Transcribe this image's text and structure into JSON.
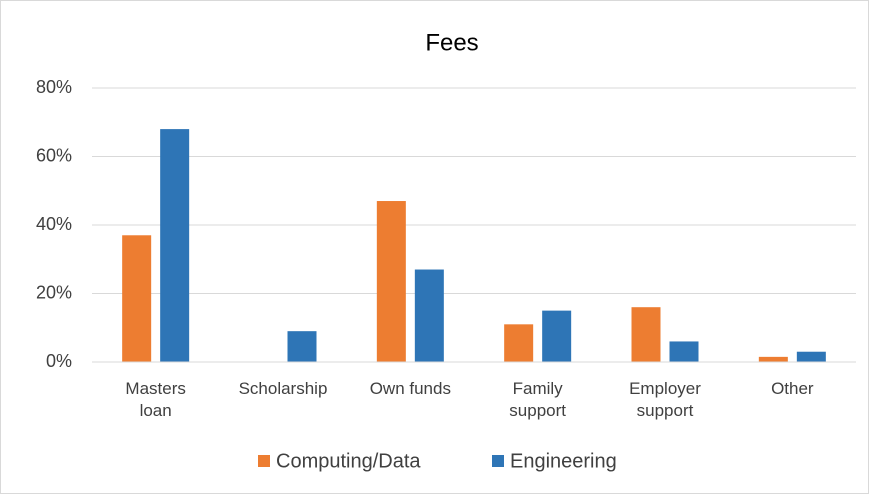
{
  "chart_data": {
    "type": "bar",
    "title": "Fees",
    "categories": [
      "Masters loan",
      "Scholarship",
      "Own funds",
      "Family support",
      "Employer support",
      "Other"
    ],
    "series": [
      {
        "name": "Computing/Data",
        "color": "#ed7d31",
        "values": [
          37,
          0,
          47,
          11,
          16,
          1.5
        ]
      },
      {
        "name": "Engineering",
        "color": "#2e75b6",
        "values": [
          68,
          9,
          27,
          15,
          6,
          3
        ]
      }
    ],
    "ylim": [
      0,
      80
    ],
    "yticks": [
      {
        "value": 0,
        "label": "0%"
      },
      {
        "value": 20,
        "label": "20%"
      },
      {
        "value": 40,
        "label": "40%"
      },
      {
        "value": 60,
        "label": "60%"
      },
      {
        "value": 80,
        "label": "80%"
      }
    ],
    "grid": true,
    "legend": "bottom"
  }
}
